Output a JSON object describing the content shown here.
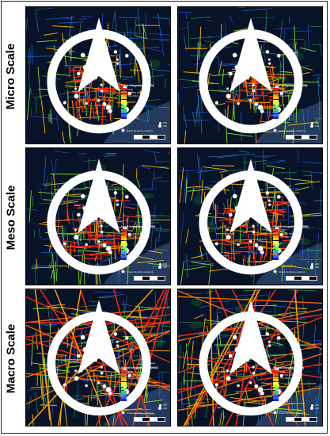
{
  "rows": [
    {
      "label": "Micro Scale",
      "panels": [
        {
          "id": "p11",
          "legend_title": "Local Integration (R800)",
          "legend_key": "Street Vending Locations"
        },
        {
          "id": "p12",
          "legend_title": "Local Integration (R1200)",
          "legend_key": "Street Vending Locations"
        }
      ]
    },
    {
      "label": "Meso Scale",
      "panels": [
        {
          "id": "p21",
          "legend_title": "Local Integration (R2000)",
          "legend_key": "Street Vending Locations"
        },
        {
          "id": "p22",
          "legend_title": "Global Integration (R3000)",
          "legend_key": "Street Vending Locations"
        }
      ]
    },
    {
      "label": "Macro Scale",
      "panels": [
        {
          "id": "p31",
          "legend_title": "Global Integration (R10000)",
          "legend_key": "Street Vending Locations"
        },
        {
          "id": "p32",
          "legend_title": "Global Integration (Rn)",
          "legend_key": "Street Vending Locations"
        }
      ]
    }
  ],
  "legend": {
    "ramp_labels": [
      "High",
      "Top 5% (5% rank)",
      "Top 10% (10% rank)",
      "",
      "",
      "",
      "",
      "",
      "",
      "",
      "Low"
    ],
    "size_labels": [
      "100",
      "200"
    ],
    "ramp_colors": [
      "#ff1a1a",
      "#ff5a00",
      "#ff9900",
      "#ffcc00",
      "#ffff33",
      "#ccff33",
      "#66ff33",
      "#33cc66",
      "#33a0ff",
      "#3366ff",
      "#1a1aff"
    ]
  },
  "colors": {
    "background": "#081327",
    "river": "#243a5e",
    "park": "#0f3a2a",
    "high": "#ff2a10",
    "mid": "#ffb000",
    "green": "#7ddc2a",
    "low": "#2a5cff",
    "markers": "#ffffff"
  },
  "icons": {
    "compass": "north-arrow-icon",
    "marker": "vending-location-marker-icon"
  }
}
